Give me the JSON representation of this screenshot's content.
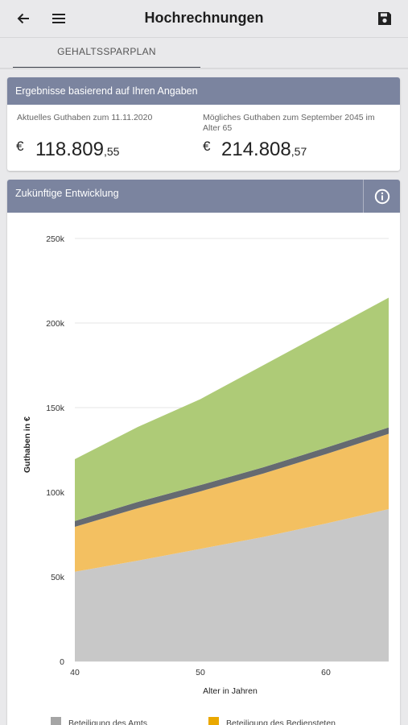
{
  "header": {
    "title": "Hochrechnungen"
  },
  "tabs": [
    {
      "label": "GEHALTSSPARPLAN"
    }
  ],
  "results": {
    "heading": "Ergebnisse basierend auf Ihren Angaben",
    "current": {
      "label": "Aktuelles Guthaben zum 11.11.2020",
      "currency": "€",
      "amount_main": "118.809",
      "amount_cents": ",55"
    },
    "future": {
      "label_line1": "Mögliches Guthaben zum September 2045 im",
      "label_line2": "Alter 65",
      "currency": "€",
      "amount_main": "214.808",
      "amount_cents": ",57"
    }
  },
  "development": {
    "heading": "Zukünftige Entwicklung"
  },
  "chart_data": {
    "type": "area",
    "stacked": true,
    "x": [
      40,
      45,
      50,
      55,
      60,
      65
    ],
    "xlabel": "Alter in Jahren",
    "ylabel": "Guthaben in €",
    "xlim": [
      40,
      65
    ],
    "ylim": [
      0,
      250000
    ],
    "xticks": [
      40,
      50,
      60
    ],
    "yticks": [
      0,
      50000,
      100000,
      150000,
      200000,
      250000
    ],
    "ytick_labels": [
      "0",
      "50k",
      "100k",
      "150k",
      "200k",
      "250k"
    ],
    "grid": true,
    "legend_position": "bottom",
    "series": [
      {
        "name": "Beteiligung des Amts",
        "color": "#c8c8c8",
        "values": [
          53000,
          59500,
          66500,
          73500,
          81500,
          90000
        ]
      },
      {
        "name": "Beteiligung des Bediensteten",
        "color": "#f3c061",
        "values": [
          26500,
          31000,
          34000,
          37500,
          41000,
          44500
        ]
      },
      {
        "name": "",
        "color": "#656a71",
        "values": [
          3500,
          3700,
          3700,
          3700,
          3800,
          3800
        ]
      },
      {
        "name": "",
        "color": "#aecb77",
        "values": [
          36500,
          44300,
          50800,
          60300,
          68700,
          76700
        ]
      }
    ]
  },
  "colors": {
    "accent": "#7b849f",
    "background": "#e9e9eb"
  },
  "icons": {
    "back": "arrow-left-icon",
    "menu": "menu-icon",
    "save": "save-icon",
    "info": "info-icon"
  }
}
